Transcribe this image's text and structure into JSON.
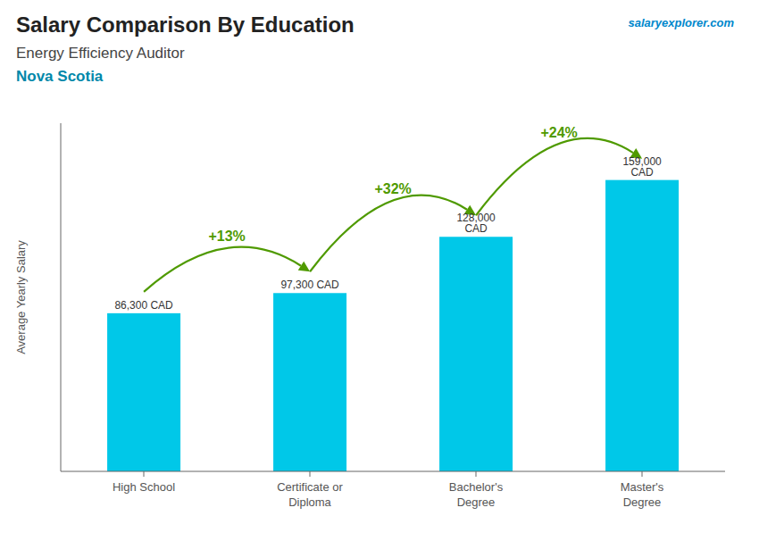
{
  "chart_data": {
    "type": "bar",
    "title": "Salary Comparison By Education",
    "subtitle": "Energy Efficiency Auditor",
    "ylabel": "Average Yearly Salary",
    "annotations": [
      "Nova Scotia",
      "salaryexplorer.com",
      "+13%",
      "+32%",
      "+24%"
    ],
    "categories": [
      "High School",
      "Certificate or\nDiploma",
      "Bachelor's\nDegree",
      "Master's\nDegree"
    ],
    "values": [
      86300,
      97300,
      128000,
      159000
    ],
    "value_labels": [
      "86,300 CAD",
      "97,300 CAD",
      "128,000 CAD",
      "159,000 CAD"
    ],
    "data_labels": true,
    "color": "#00c8e8",
    "ylim": [
      0,
      190000
    ],
    "tick_labels": "x",
    "grid": false
  }
}
